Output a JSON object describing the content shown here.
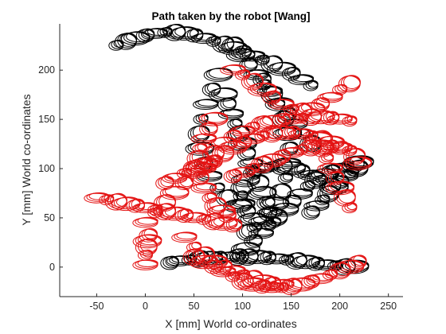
{
  "chart_data": {
    "type": "scatter",
    "title": "Path taken by the robot [Wang]",
    "xlabel": "X [mm] World co-ordinates",
    "ylabel": "Y [mm] World co-ordinates",
    "xlim": [
      -88,
      265
    ],
    "ylim": [
      -30,
      247
    ],
    "xticks": [
      -50,
      0,
      50,
      100,
      150,
      200,
      250
    ],
    "yticks": [
      0,
      50,
      100,
      150,
      200
    ],
    "grid": false,
    "legend": "none",
    "marker": "ellipse",
    "colors": {
      "axes": "#262626",
      "series_a": "#000000",
      "series_b": "#e41414"
    },
    "series": [
      {
        "color_key": "series_a",
        "x": [
          -30,
          -20,
          -10,
          0,
          10,
          20,
          30,
          40,
          50,
          60,
          70,
          80,
          90,
          100,
          110,
          120,
          130,
          140,
          150,
          160,
          170,
          90,
          98,
          106,
          114,
          122,
          130,
          138,
          146,
          154,
          162,
          170,
          75,
          68,
          62,
          57,
          55,
          56,
          60,
          66,
          74,
          84,
          95,
          120,
          128,
          136,
          142,
          146,
          148,
          147,
          144,
          139,
          133,
          126,
          119,
          112,
          105,
          80,
          84,
          88,
          92,
          96,
          100,
          104,
          108,
          112,
          116,
          120,
          124,
          128,
          132,
          95,
          103,
          111,
          119,
          127,
          135,
          143,
          151,
          159,
          167,
          175,
          183,
          191,
          199,
          207,
          214,
          220,
          25,
          35,
          45,
          55,
          65,
          75,
          85,
          95,
          105,
          115,
          125,
          135,
          145,
          155,
          165,
          175,
          185,
          195,
          205,
          215,
          170,
          176,
          182,
          188,
          194,
          200,
          206,
          212,
          218,
          110,
          104,
          100,
          98,
          99,
          103,
          110,
          120,
          130,
          140,
          150,
          160,
          170,
          180,
          190
        ],
        "y": [
          225,
          229,
          232,
          235,
          237,
          238,
          238,
          237,
          235,
          232,
          229,
          226,
          222,
          218,
          214,
          210,
          206,
          201,
          196,
          190,
          184,
          225,
          215,
          205,
          195,
          185,
          175,
          165,
          155,
          145,
          135,
          125,
          195,
          180,
          165,
          150,
          135,
          120,
          105,
          92,
          80,
          70,
          62,
          190,
          178,
          165,
          150,
          135,
          120,
          105,
          90,
          76,
          64,
          54,
          46,
          40,
          35,
          175,
          165,
          155,
          145,
          135,
          125,
          115,
          105,
          95,
          85,
          75,
          65,
          55,
          45,
          10,
          18,
          26,
          34,
          42,
          50,
          58,
          66,
          74,
          82,
          88,
          93,
          97,
          100,
          102,
          104,
          106,
          4,
          6,
          7,
          8,
          9,
          9,
          10,
          10,
          10,
          10,
          9,
          8,
          7,
          6,
          5,
          3,
          2,
          1,
          0,
          0,
          55,
          62,
          68,
          74,
          80,
          86,
          92,
          96,
          100,
          48,
          56,
          64,
          72,
          80,
          88,
          95,
          100,
          102,
          102,
          100,
          97,
          93,
          88,
          82
        ]
      },
      {
        "color_key": "series_b",
        "x": [
          -50,
          -40,
          -30,
          -20,
          -10,
          0,
          10,
          20,
          30,
          40,
          50,
          60,
          70,
          80,
          90,
          0,
          10,
          20,
          30,
          40,
          50,
          60,
          70,
          80,
          90,
          100,
          110,
          120,
          130,
          140,
          150,
          160,
          170,
          180,
          190,
          200,
          210,
          50,
          60,
          70,
          80,
          90,
          100,
          110,
          120,
          130,
          140,
          150,
          160,
          170,
          180,
          190,
          200,
          210,
          218,
          90,
          100,
          110,
          120,
          130,
          140,
          150,
          160,
          170,
          180,
          190,
          200,
          210,
          70,
          65,
          60,
          56,
          54,
          54,
          56,
          60,
          66,
          72,
          78,
          84,
          60,
          70,
          80,
          90,
          100,
          110,
          120,
          130,
          140,
          150,
          160,
          170,
          180,
          190,
          200,
          40,
          50,
          60,
          70,
          80,
          90,
          100,
          110,
          120,
          130,
          140,
          210,
          205,
          200,
          195,
          190,
          186,
          182,
          178,
          90,
          100,
          110,
          120,
          130,
          140,
          150,
          160,
          170,
          180,
          190,
          200,
          210,
          215,
          218,
          20,
          30,
          40,
          50,
          60,
          70,
          0,
          0,
          1,
          2,
          3
        ],
        "y": [
          70,
          68,
          66,
          64,
          62,
          60,
          58,
          56,
          54,
          52,
          50,
          48,
          46,
          44,
          42,
          45,
          55,
          65,
          75,
          85,
          95,
          105,
          115,
          125,
          132,
          138,
          142,
          145,
          147,
          149,
          150,
          151,
          152,
          152,
          151,
          150,
          148,
          10,
          5,
          0,
          -5,
          -10,
          -15,
          -18,
          -20,
          -21,
          -21,
          -20,
          -18,
          -15,
          -12,
          -8,
          -4,
          0,
          5,
          200,
          195,
          188,
          180,
          172,
          165,
          160,
          158,
          160,
          165,
          172,
          180,
          186,
          150,
          140,
          130,
          120,
          110,
          100,
          90,
          80,
          70,
          62,
          56,
          52,
          100,
          108,
          115,
          121,
          126,
          130,
          133,
          135,
          136,
          136,
          135,
          133,
          130,
          126,
          121,
          30,
          20,
          12,
          5,
          0,
          -4,
          -8,
          -12,
          -15,
          -17,
          -18,
          60,
          70,
          80,
          90,
          100,
          110,
          120,
          130,
          92,
          96,
          100,
          104,
          108,
          112,
          116,
          119,
          121,
          122,
          122,
          121,
          118,
          112,
          105,
          85,
          90,
          95,
          100,
          104,
          107,
          2,
          12,
          20,
          26,
          32
        ]
      }
    ]
  }
}
